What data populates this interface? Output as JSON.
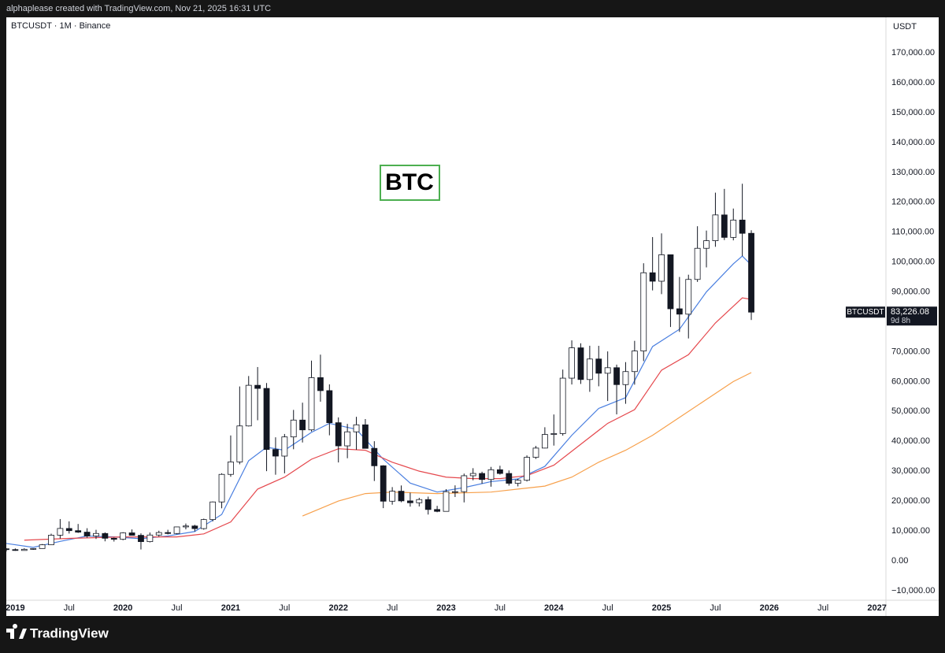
{
  "header": {
    "text": "alphaplease created with TradingView.com, Nov 21, 2025 16:31 UTC"
  },
  "footer": {
    "brand": "TradingView"
  },
  "chart_data": {
    "type": "candlestick",
    "title": "BTCUSDT · 1M · Binance",
    "y_axis_label": "USDT",
    "annotation": "BTC",
    "up_color": "#ffffff",
    "down_color": "#131722",
    "grid": false,
    "x": [
      "2018-12",
      "2019-01",
      "2019-02",
      "2019-03",
      "2019-04",
      "2019-05",
      "2019-06",
      "2019-07",
      "2019-08",
      "2019-09",
      "2019-10",
      "2019-11",
      "2019-12",
      "2020-01",
      "2020-02",
      "2020-03",
      "2020-04",
      "2020-05",
      "2020-06",
      "2020-07",
      "2020-08",
      "2020-09",
      "2020-10",
      "2020-11",
      "2020-12",
      "2021-01",
      "2021-02",
      "2021-03",
      "2021-04",
      "2021-05",
      "2021-06",
      "2021-07",
      "2021-08",
      "2021-09",
      "2021-10",
      "2021-11",
      "2021-12",
      "2022-01",
      "2022-02",
      "2022-03",
      "2022-04",
      "2022-05",
      "2022-06",
      "2022-07",
      "2022-08",
      "2022-09",
      "2022-10",
      "2022-11",
      "2022-12",
      "2023-01",
      "2023-02",
      "2023-03",
      "2023-04",
      "2023-05",
      "2023-06",
      "2023-07",
      "2023-08",
      "2023-09",
      "2023-10",
      "2023-11",
      "2023-12",
      "2024-01",
      "2024-02",
      "2024-03",
      "2024-04",
      "2024-05",
      "2024-06",
      "2024-07",
      "2024-08",
      "2024-09",
      "2024-10",
      "2024-11",
      "2024-12",
      "2025-01",
      "2025-02",
      "2025-03",
      "2025-04",
      "2025-05",
      "2025-06",
      "2025-07",
      "2025-08",
      "2025-09",
      "2025-10",
      "2025-11"
    ],
    "open": [
      4017,
      3742,
      3457,
      3855,
      4105,
      5351,
      8574,
      10817,
      10085,
      9588,
      8289,
      9140,
      7541,
      7195,
      9352,
      8523,
      6410,
      8620,
      9448,
      9138,
      11335,
      11649,
      10776,
      13791,
      19695,
      28923,
      33092,
      45135,
      58740,
      57694,
      37253,
      35045,
      41461,
      47100,
      43824,
      61299,
      56950,
      46216,
      38466,
      43160,
      45510,
      37630,
      31801,
      19942,
      23293,
      20050,
      19423,
      20490,
      17164,
      16542,
      23125,
      23141,
      28465,
      29233,
      27210,
      30472,
      29232,
      25941,
      26963,
      34639,
      37724,
      42284,
      42580,
      61130,
      71280,
      60672,
      67540,
      62772,
      64628,
      58974,
      63327,
      70215,
      96408,
      93576,
      102430,
      84350,
      82550,
      94172,
      104591,
      107135,
      115764,
      108246,
      114048,
      109608
    ],
    "high": [
      4236,
      4140,
      4198,
      4145,
      5600,
      9075,
      13970,
      13200,
      12325,
      10905,
      10370,
      9505,
      7750,
      9578,
      10500,
      9188,
      9467,
      10067,
      10380,
      11444,
      12468,
      12050,
      14100,
      19863,
      29300,
      41950,
      58352,
      61844,
      64854,
      59500,
      41330,
      42448,
      50500,
      52920,
      67000,
      69000,
      59053,
      47990,
      45821,
      48189,
      47444,
      40023,
      31986,
      24668,
      25211,
      22799,
      21085,
      21480,
      18387,
      23960,
      25250,
      29184,
      31000,
      29820,
      31431,
      31804,
      30244,
      27483,
      35280,
      38450,
      44700,
      48970,
      64000,
      73777,
      72797,
      71979,
      71949,
      70079,
      65660,
      66498,
      73620,
      99588,
      108353,
      109588,
      102500,
      95000,
      95758,
      111980,
      110530,
      123218,
      124474,
      117900,
      126199,
      110640
    ],
    "low": [
      3157,
      3350,
      3400,
      3662,
      4055,
      5350,
      7442,
      9111,
      9320,
      7710,
      7300,
      6515,
      6435,
      6871,
      8450,
      3782,
      6150,
      8117,
      8833,
      8893,
      10518,
      9825,
      10416,
      13195,
      17572,
      28130,
      32296,
      44950,
      47044,
      30000,
      28805,
      29278,
      37332,
      39600,
      43283,
      53256,
      42000,
      32917,
      34322,
      37155,
      37578,
      26700,
      17622,
      18781,
      19600,
      18125,
      18190,
      15476,
      16256,
      16499,
      21351,
      19549,
      26942,
      25811,
      24800,
      28861,
      25166,
      24901,
      26538,
      34097,
      37630,
      38555,
      41884,
      59005,
      59191,
      56552,
      58402,
      53485,
      49000,
      52550,
      58946,
      66835,
      90500,
      89256,
      78258,
      76606,
      74420,
      93346,
      98200,
      105100,
      107350,
      107255,
      102000,
      80600
    ],
    "close": [
      3742,
      3457,
      3855,
      4105,
      5351,
      8574,
      10817,
      10085,
      9588,
      8289,
      9140,
      7541,
      7195,
      9352,
      8523,
      6410,
      8620,
      9448,
      9138,
      11335,
      11649,
      10776,
      13791,
      19695,
      28923,
      33092,
      45135,
      58740,
      57694,
      37253,
      35045,
      41461,
      47100,
      43824,
      61299,
      56950,
      46216,
      38466,
      43160,
      45510,
      37630,
      31801,
      19942,
      23293,
      20050,
      19423,
      20490,
      17164,
      16542,
      23125,
      23141,
      28465,
      29233,
      27210,
      30472,
      29232,
      25941,
      26963,
      34639,
      37724,
      42284,
      42580,
      61130,
      71280,
      60672,
      67540,
      62772,
      64628,
      58974,
      63327,
      70215,
      96408,
      93576,
      102430,
      84350,
      82550,
      94172,
      104591,
      107135,
      115764,
      108246,
      114048,
      109608,
      83226.08
    ],
    "last_label": {
      "name": "BTCUSDT",
      "price": "83,226.08",
      "countdown": "9d 8h"
    },
    "lines": [
      {
        "color": "#4a7fe0",
        "x": [
          "2018-12",
          "2019-03",
          "2019-06",
          "2019-09",
          "2019-12",
          "2020-03",
          "2020-06",
          "2020-09",
          "2020-12",
          "2021-03",
          "2021-05",
          "2021-07",
          "2021-10",
          "2021-12",
          "2022-03",
          "2022-06",
          "2022-09",
          "2022-12",
          "2023-03",
          "2023-06",
          "2023-09",
          "2023-12",
          "2024-03",
          "2024-06",
          "2024-09",
          "2024-12",
          "2025-03",
          "2025-06",
          "2025-09",
          "2025-10",
          "2025-11"
        ],
        "values": [
          5800,
          4500,
          6500,
          8300,
          8000,
          7400,
          8300,
          9800,
          15500,
          33500,
          38000,
          37000,
          43000,
          46000,
          44000,
          34000,
          26000,
          23000,
          24500,
          26500,
          27400,
          31600,
          42000,
          51000,
          54600,
          71700,
          77500,
          90000,
          99400,
          102000,
          99000
        ]
      },
      {
        "color": "#e5484d",
        "x": [
          "2019-02",
          "2019-07",
          "2020-01",
          "2020-07",
          "2020-10",
          "2021-01",
          "2021-04",
          "2021-07",
          "2021-10",
          "2022-01",
          "2022-04",
          "2022-07",
          "2022-10",
          "2023-01",
          "2023-04",
          "2023-07",
          "2023-10",
          "2024-01",
          "2024-04",
          "2024-07",
          "2024-10",
          "2025-01",
          "2025-04",
          "2025-07",
          "2025-10",
          "2025-11"
        ],
        "values": [
          6900,
          7500,
          8000,
          8000,
          9000,
          13000,
          24000,
          28000,
          34000,
          37500,
          37000,
          33000,
          30000,
          28000,
          27500,
          27500,
          28500,
          32000,
          39000,
          46000,
          50600,
          63800,
          69000,
          79600,
          88000,
          87500
        ]
      },
      {
        "color": "#f7a04b",
        "x": [
          "2021-09",
          "2022-01",
          "2022-04",
          "2022-07",
          "2022-12",
          "2023-06",
          "2023-09",
          "2023-12",
          "2024-03",
          "2024-06",
          "2024-09",
          "2024-12",
          "2025-03",
          "2025-06",
          "2025-09",
          "2025-11"
        ],
        "values": [
          15000,
          20000,
          22500,
          23000,
          22500,
          23000,
          24000,
          25000,
          28000,
          33000,
          37000,
          42000,
          48000,
          54000,
          60000,
          63000
        ]
      }
    ],
    "xlim": [
      "2018-12",
      "2027-02"
    ],
    "xticks": [
      {
        "value": "2019-01",
        "label": "2019"
      },
      {
        "value": "2019-07",
        "label": "Jul"
      },
      {
        "value": "2020-01",
        "label": "2020"
      },
      {
        "value": "2020-07",
        "label": "Jul"
      },
      {
        "value": "2021-01",
        "label": "2021"
      },
      {
        "value": "2021-07",
        "label": "Jul"
      },
      {
        "value": "2022-01",
        "label": "2022"
      },
      {
        "value": "2022-07",
        "label": "Jul"
      },
      {
        "value": "2023-01",
        "label": "2023"
      },
      {
        "value": "2023-07",
        "label": "Jul"
      },
      {
        "value": "2024-01",
        "label": "2024"
      },
      {
        "value": "2024-07",
        "label": "Jul"
      },
      {
        "value": "2025-01",
        "label": "2025"
      },
      {
        "value": "2025-07",
        "label": "Jul"
      },
      {
        "value": "2026-01",
        "label": "2026"
      },
      {
        "value": "2026-07",
        "label": "Jul"
      },
      {
        "value": "2027-01",
        "label": "2027"
      }
    ],
    "ylim": [
      -13200,
      181900
    ],
    "yticks": [
      {
        "value": -10000,
        "label": "−10,000.00"
      },
      {
        "value": 0,
        "label": "0.00"
      },
      {
        "value": 10000,
        "label": "10,000.00"
      },
      {
        "value": 20000,
        "label": "20,000.00"
      },
      {
        "value": 30000,
        "label": "30,000.00"
      },
      {
        "value": 40000,
        "label": "40,000.00"
      },
      {
        "value": 50000,
        "label": "50,000.00"
      },
      {
        "value": 60000,
        "label": "60,000.00"
      },
      {
        "value": 70000,
        "label": "70,000.00"
      },
      {
        "value": 80000,
        "label": "80,000.00"
      },
      {
        "value": 90000,
        "label": "90,000.00"
      },
      {
        "value": 100000,
        "label": "100,000.00"
      },
      {
        "value": 110000,
        "label": "110,000.00"
      },
      {
        "value": 120000,
        "label": "120,000.00"
      },
      {
        "value": 130000,
        "label": "130,000.00"
      },
      {
        "value": 140000,
        "label": "140,000.00"
      },
      {
        "value": 150000,
        "label": "150,000.00"
      },
      {
        "value": 160000,
        "label": "160,000.00"
      },
      {
        "value": 170000,
        "label": "170,000.00"
      }
    ]
  }
}
